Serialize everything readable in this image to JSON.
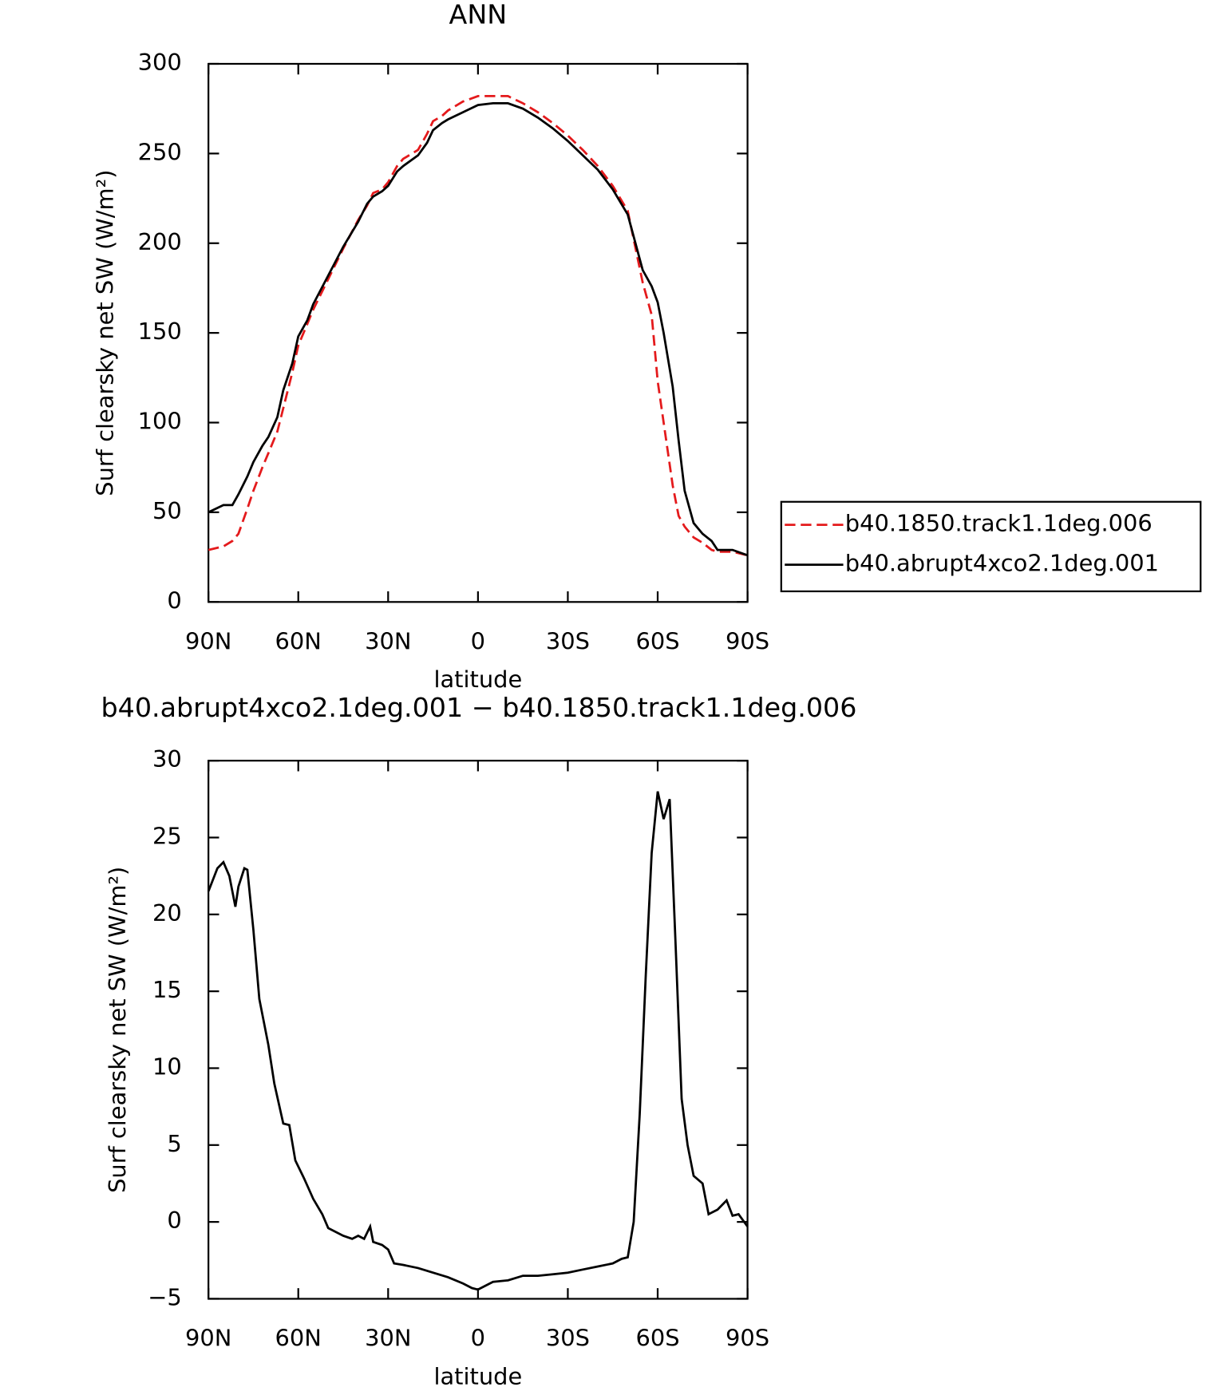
{
  "chart_data": [
    {
      "type": "line",
      "title": "ANN",
      "xlabel": "latitude",
      "ylabel": "Surf clearsky net SW (W/m²)",
      "x": [
        90,
        85,
        82,
        80,
        77,
        75,
        72,
        70,
        67,
        65,
        62,
        60,
        57,
        55,
        50,
        45,
        40,
        37,
        35,
        32,
        30,
        27,
        25,
        20,
        17,
        15,
        12,
        10,
        5,
        0,
        -5,
        -10,
        -15,
        -20,
        -25,
        -30,
        -35,
        -40,
        -45,
        -50,
        -55,
        -58,
        -60,
        -62,
        -65,
        -67,
        -69,
        -72,
        -75,
        -78,
        -80,
        -85,
        -90
      ],
      "series": [
        {
          "name": "b40.1850.track1.1deg.006",
          "color": "#e41a1c",
          "linestyle": "dashed",
          "values": [
            29,
            31,
            34,
            38,
            52,
            62,
            75,
            83,
            95,
            108,
            128,
            143,
            155,
            163,
            180,
            197,
            213,
            221,
            228,
            230,
            234,
            243,
            247,
            252,
            261,
            268,
            271,
            274,
            279,
            282,
            282,
            282,
            278,
            273,
            267,
            260,
            252,
            243,
            232,
            218,
            178,
            160,
            123,
            100,
            65,
            48,
            42,
            36,
            33,
            29,
            28,
            28,
            26
          ]
        },
        {
          "name": "b40.abrupt4xco2.1deg.001",
          "color": "#000000",
          "linestyle": "solid",
          "values": [
            50,
            54,
            54,
            60,
            70,
            78,
            87,
            92,
            103,
            118,
            133,
            148,
            157,
            166,
            182,
            198,
            212,
            222,
            226,
            229,
            232,
            240,
            243,
            249,
            256,
            263,
            267,
            269,
            273,
            277,
            278,
            278,
            275,
            270,
            264,
            257,
            249,
            241,
            230,
            216,
            185,
            176,
            167,
            150,
            120,
            90,
            62,
            44,
            38,
            34,
            29,
            29,
            26
          ]
        }
      ],
      "xlim": [
        90,
        -90
      ],
      "xticks": [
        {
          "value": 90,
          "label": "90N"
        },
        {
          "value": 60,
          "label": "60N"
        },
        {
          "value": 30,
          "label": "30N"
        },
        0,
        {
          "value": -30,
          "label": "30S"
        },
        {
          "value": -60,
          "label": "60S"
        },
        {
          "value": -90,
          "label": "90S"
        }
      ],
      "ylim": [
        0,
        300
      ],
      "yticks": [
        0,
        50,
        100,
        150,
        200,
        250,
        300
      ],
      "legend": "outside right"
    },
    {
      "type": "line",
      "title": "b40.abrupt4xco2.1deg.001 − b40.1850.track1.1deg.006",
      "xlabel": "latitude",
      "ylabel": "Surf clearsky net SW (W/m²)",
      "color": "#000000",
      "x": [
        90,
        87,
        85,
        83,
        81,
        80,
        78,
        77,
        75,
        73,
        70,
        68,
        65,
        63,
        61,
        58,
        55,
        52,
        50,
        45,
        42,
        40,
        38,
        36,
        35,
        32,
        30,
        28,
        25,
        20,
        15,
        10,
        5,
        2,
        0,
        -3,
        -5,
        -10,
        -15,
        -20,
        -25,
        -30,
        -35,
        -40,
        -45,
        -48,
        -50,
        -52,
        -54,
        -56,
        -58,
        -60,
        -62,
        -64,
        -66,
        -68,
        -70,
        -72,
        -75,
        -77,
        -80,
        -83,
        -85,
        -87,
        -90
      ],
      "values": [
        21.5,
        23,
        23.4,
        22.5,
        20.5,
        21.8,
        23,
        22.9,
        19,
        14.5,
        11.5,
        9,
        6.4,
        6.3,
        4,
        2.8,
        1.5,
        0.5,
        -0.4,
        -0.9,
        -1.1,
        -0.9,
        -1.1,
        -0.3,
        -1.3,
        -1.5,
        -1.8,
        -2.7,
        -2.8,
        -3,
        -3.3,
        -3.6,
        -4,
        -4.3,
        -4.4,
        -4.1,
        -3.9,
        -3.8,
        -3.5,
        -3.5,
        -3.4,
        -3.3,
        -3.1,
        -2.9,
        -2.7,
        -2.4,
        -2.3,
        0,
        7,
        16,
        24,
        28,
        26.2,
        27.5,
        18,
        8,
        5,
        3,
        2.5,
        0.5,
        0.8,
        1.4,
        0.4,
        0.5,
        -0.3
      ],
      "xlim": [
        90,
        -90
      ],
      "xticks": [
        {
          "value": 90,
          "label": "90N"
        },
        {
          "value": 60,
          "label": "60N"
        },
        {
          "value": 30,
          "label": "30N"
        },
        0,
        {
          "value": -30,
          "label": "30S"
        },
        {
          "value": -60,
          "label": "60S"
        },
        {
          "value": -90,
          "label": "90S"
        }
      ],
      "ylim": [
        -5,
        30
      ],
      "yticks": [
        {
          "value": -5,
          "label": "−5"
        },
        0,
        5,
        10,
        15,
        20,
        25,
        30
      ]
    }
  ]
}
